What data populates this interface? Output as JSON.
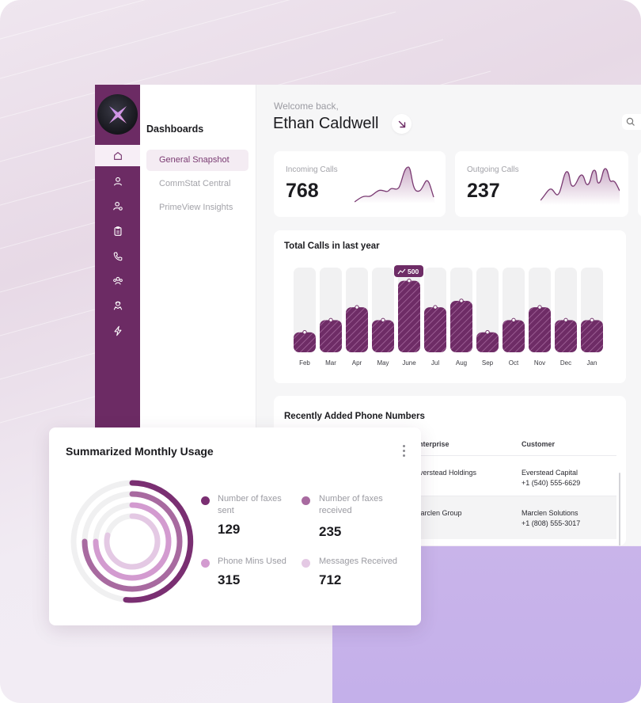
{
  "header": {
    "welcome": "Welcome back,",
    "user_name": "Ethan Caldwell"
  },
  "subnav": {
    "title": "Dashboards",
    "items": [
      {
        "label": "General Snapshot",
        "active": true
      },
      {
        "label": "CommStat Central",
        "active": false
      },
      {
        "label": "PrimeView Insights",
        "active": false
      }
    ]
  },
  "rail": {
    "icons": [
      "home-icon",
      "user-icon",
      "user-settings-icon",
      "clipboard-icon",
      "phone-icon",
      "group-icon",
      "agent-icon",
      "bolt-icon"
    ],
    "active": "home-icon"
  },
  "stats": {
    "incoming": {
      "label": "Incoming Calls",
      "value": "768"
    },
    "outgoing": {
      "label": "Outgoing Calls",
      "value": "237"
    }
  },
  "calls_chart": {
    "title": "Total Calls in last year",
    "badge": "500"
  },
  "chart_data": {
    "type": "bar",
    "title": "Total Calls in last year",
    "categories": [
      "Feb",
      "Mar",
      "Apr",
      "May",
      "June",
      "Jul",
      "Aug",
      "Sep",
      "Oct",
      "Nov",
      "Dec",
      "Jan"
    ],
    "values": [
      140,
      225,
      315,
      225,
      500,
      315,
      360,
      140,
      225,
      315,
      225,
      225
    ],
    "ylim": [
      0,
      620
    ],
    "highlight": "June",
    "bar_color": "#6e2c66",
    "track_color": "#f1f1f2"
  },
  "table": {
    "title": "Recently Added Phone Numbers",
    "columns": [
      "Enterprise",
      "Customer"
    ],
    "rows": [
      {
        "enterprise": "Everstead Holdings",
        "customer": "Everstead Capital",
        "phone": "+1 (540) 555-6629"
      },
      {
        "enterprise": "Marclen Group",
        "customer": "Marclen Solutions",
        "phone": "+1 (808) 555-3017"
      }
    ]
  },
  "usage": {
    "title": "Summarized Monthly Usage",
    "items": [
      {
        "label_lines": [
          "Number of faxes",
          "sent"
        ],
        "value": "129",
        "color": "#7a2f72"
      },
      {
        "label_lines": [
          "Number of faxes",
          "received"
        ],
        "value": "235",
        "color": "#a86aa0"
      },
      {
        "label_lines": [
          "Phone Mins Used"
        ],
        "value": "315",
        "color": "#d39bd0"
      },
      {
        "label_lines": [
          "Messages Received"
        ],
        "value": "712",
        "color": "#e4c9e4"
      }
    ]
  },
  "colors": {
    "brand": "#6c2b64",
    "accent_light": "#f4ecf3"
  }
}
